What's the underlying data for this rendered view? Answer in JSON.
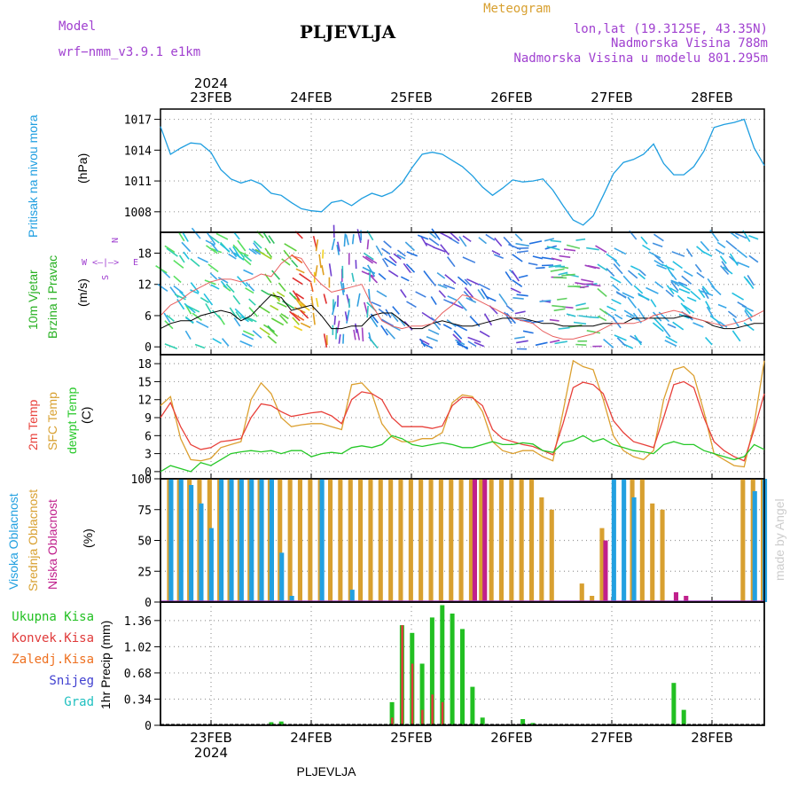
{
  "header": {
    "model_label": "Model",
    "model_name": "wrf−nmm_v3.9.1  e1km",
    "station": "PLJEVLJA",
    "product": "Meteogram",
    "lonlat": "lon,lat (19.3125E, 43.35N)",
    "elevation": "Nadmorska Visina 788m",
    "model_elevation": "Nadmorska Visina u modelu 801.295m",
    "footer_station": "PLJEVLJA",
    "watermark": "made by Angel"
  },
  "colors": {
    "pressure": "#1E9EE0",
    "t2m": "#E8403A",
    "tsfc": "#DCA030",
    "dewpt": "#26C828",
    "cloud_high": "#22A0E0",
    "cloud_mid": "#D8A030",
    "cloud_low": "#C0208C",
    "precip_total": "#22C022",
    "precip_conv": "#E03A3A",
    "precip_strat": "#EE7020",
    "snow": "#4040D0",
    "hail": "#20C0C0",
    "wind_label": "#26B020",
    "compass": "#A040D0",
    "title_color": "#222222"
  },
  "x_axis": {
    "year": "2024",
    "dates": [
      "23FEB",
      "24FEB",
      "25FEB",
      "26FEB",
      "27FEB",
      "28FEB"
    ]
  },
  "chart_data": [
    {
      "type": "line",
      "name": "pressure",
      "ylabel_lines": [
        "Pritisak na nivou mora",
        "(hPa)"
      ],
      "yticks": [
        "1017",
        "1014",
        "1011",
        "1008"
      ],
      "ylim": [
        1006,
        1018
      ],
      "x_range": [
        "22FEB 12UTC",
        "28FEB 12UTC"
      ],
      "series": [
        {
          "values": [
            1016.3,
            1013.6,
            1014.2,
            1014.7,
            1014.6,
            1013.8,
            1012.1,
            1011.2,
            1010.8,
            1011.1,
            1010.7,
            1009.8,
            1009.6,
            1008.9,
            1008.3,
            1008.1,
            1008.0,
            1008.9,
            1009.1,
            1008.6,
            1009.3,
            1009.8,
            1009.5,
            1009.9,
            1010.8,
            1012.3,
            1013.6,
            1013.8,
            1013.6,
            1013.0,
            1012.4,
            1011.5,
            1010.4,
            1009.6,
            1010.3,
            1011.1,
            1010.9,
            1011.0,
            1011.2,
            1010.1,
            1008.6,
            1007.2,
            1006.7,
            1007.6,
            1009.6,
            1011.7,
            1012.8,
            1013.1,
            1013.6,
            1014.6,
            1012.7,
            1011.6,
            1011.6,
            1012.4,
            1013.9,
            1016.2,
            1016.5,
            1016.7,
            1017.0,
            1014.2,
            1012.5
          ]
        }
      ]
    },
    {
      "type": "line",
      "name": "wind",
      "ylabel_lines": [
        "10m Vjetar",
        "Brzina i Pravac",
        "(m/s)"
      ],
      "compass": {
        "n": "N",
        "s": "S",
        "e": "E",
        "w": "W",
        "glyph": "<–|–>"
      },
      "yticks": [
        "18",
        "12",
        "6",
        "0"
      ],
      "ylim": [
        -1.5,
        22
      ],
      "series": [
        {
          "name": "mean",
          "values": [
            3.5,
            4.5,
            5.0,
            5.0,
            6.0,
            6.5,
            7.0,
            6.5,
            5.0,
            6.0,
            8.0,
            10.0,
            9.5,
            7.0,
            7.5,
            8.0,
            6.0,
            3.5,
            3.5,
            4.0,
            4.0,
            6.0,
            6.5,
            6.5,
            5.0,
            3.5,
            3.5,
            4.5,
            5.0,
            4.5,
            4.0,
            4.0,
            4.5,
            5.0,
            5.5,
            5.5,
            5.5,
            5.0,
            4.5,
            4.5,
            4.0,
            4.0,
            4.0,
            4.0,
            4.5,
            4.5,
            4.5,
            5.5,
            5.5,
            5.5,
            5.5,
            5.5,
            6.0,
            5.5,
            5.0,
            4.0,
            3.5,
            3.5,
            4.0,
            4.5,
            4.5
          ]
        },
        {
          "name": "gust",
          "values": [
            6.0,
            8.0,
            9.0,
            10.5,
            11.5,
            12.5,
            13.0,
            13.0,
            12.5,
            13.0,
            14.0,
            13.5,
            16.0,
            17.5,
            17.0,
            14.0,
            12.0,
            10.5,
            11.0,
            11.5,
            12.0,
            8.0,
            5.0,
            4.0,
            3.5,
            4.0,
            4.0,
            4.5,
            6.5,
            8.0,
            10.0,
            9.5,
            8.5,
            7.5,
            6.5,
            5.5,
            5.0,
            4.5,
            3.0,
            2.0,
            1.5,
            1.5,
            2.0,
            2.5,
            3.5,
            4.5,
            4.5,
            4.5,
            5.0,
            6.0,
            6.5,
            7.0,
            6.5,
            5.5,
            5.0,
            4.5,
            4.0,
            4.5,
            5.0,
            6.0,
            7.0
          ]
        }
      ]
    },
    {
      "type": "line",
      "name": "temperature",
      "ylabel_lines": [
        "2m Temp",
        "SFC Temp",
        "dewpt Temp",
        "(C)"
      ],
      "yticks": [
        "18",
        "15",
        "12",
        "9",
        "6",
        "3",
        "0"
      ],
      "ylim": [
        -1.2,
        19.5
      ],
      "series": [
        {
          "name": "2m Temp",
          "values": [
            9.0,
            11.5,
            7.5,
            4.5,
            3.7,
            4.0,
            5.0,
            5.2,
            5.5,
            9.0,
            11.3,
            11.0,
            10.0,
            9.2,
            9.5,
            9.8,
            10.0,
            9.3,
            8.0,
            12.0,
            13.3,
            13.0,
            12.0,
            9.0,
            7.5,
            7.5,
            7.5,
            7.2,
            7.6,
            11.0,
            12.4,
            12.3,
            11.0,
            7.0,
            5.5,
            5.0,
            4.5,
            4.2,
            3.5,
            2.8,
            8.0,
            14.0,
            14.9,
            14.5,
            13.0,
            8.5,
            6.5,
            5.0,
            4.5,
            4.0,
            9.0,
            14.5,
            15.0,
            14.0,
            9.0,
            5.0,
            3.5,
            2.5,
            1.8,
            7.0,
            13.0
          ]
        },
        {
          "name": "SFC Temp",
          "values": [
            11.0,
            12.5,
            5.5,
            2.0,
            1.8,
            2.2,
            4.0,
            4.5,
            5.0,
            12.0,
            14.8,
            13.0,
            9.0,
            7.5,
            7.8,
            8.0,
            8.0,
            7.5,
            7.0,
            14.5,
            14.8,
            13.0,
            8.0,
            5.8,
            5.0,
            5.0,
            5.5,
            5.5,
            6.5,
            11.5,
            12.8,
            12.5,
            10.0,
            5.0,
            3.5,
            3.0,
            3.5,
            3.5,
            2.5,
            1.8,
            10.0,
            18.5,
            17.5,
            17.0,
            12.0,
            6.0,
            3.5,
            2.5,
            2.0,
            3.5,
            12.0,
            17.0,
            17.5,
            16.0,
            10.0,
            3.0,
            2.0,
            1.0,
            0.8,
            8.0,
            18.5
          ]
        },
        {
          "name": "dewpt Temp",
          "values": [
            0.0,
            1.0,
            0.5,
            0.0,
            1.5,
            1.0,
            2.0,
            3.0,
            3.3,
            3.5,
            3.3,
            3.5,
            3.0,
            3.5,
            3.5,
            2.5,
            3.0,
            3.2,
            3.0,
            4.0,
            4.3,
            4.0,
            4.5,
            6.0,
            5.5,
            4.5,
            4.2,
            4.5,
            4.8,
            4.5,
            4.0,
            4.0,
            4.5,
            5.0,
            4.5,
            4.5,
            4.8,
            4.6,
            3.5,
            3.2,
            4.8,
            5.2,
            6.0,
            5.0,
            5.5,
            4.5,
            4.0,
            3.5,
            3.3,
            3.0,
            4.5,
            5.0,
            4.5,
            4.5,
            3.5,
            3.0,
            2.5,
            2.0,
            2.5,
            4.5,
            3.7
          ]
        }
      ]
    },
    {
      "type": "bar",
      "name": "cloud",
      "ylabel_lines": [
        "Visoka Oblacnost",
        "Srednja Oblacnost",
        "Niska Oblacnost",
        "(%)"
      ],
      "yticks": [
        "100",
        "75",
        "50",
        "25",
        "0"
      ],
      "ylim": [
        0,
        100
      ],
      "series": [
        {
          "name": "Visoka Oblacnost",
          "values": [
            0,
            100,
            100,
            95,
            80,
            60,
            100,
            100,
            100,
            100,
            100,
            100,
            40,
            5,
            0,
            0,
            100,
            0,
            0,
            10,
            0,
            0,
            0,
            0,
            0,
            0,
            0,
            0,
            0,
            0,
            0,
            0,
            0,
            0,
            0,
            0,
            0,
            0,
            0,
            0,
            0,
            0,
            0,
            0,
            0,
            100,
            100,
            85,
            0,
            0,
            0,
            0,
            0,
            0,
            0,
            0,
            0,
            0,
            0,
            90,
            100
          ]
        },
        {
          "name": "Srednja Oblacnost",
          "values": [
            0,
            100,
            100,
            100,
            100,
            100,
            100,
            100,
            100,
            100,
            100,
            100,
            100,
            100,
            100,
            100,
            100,
            100,
            100,
            100,
            100,
            100,
            100,
            100,
            100,
            100,
            100,
            100,
            100,
            100,
            100,
            100,
            100,
            100,
            100,
            100,
            100,
            100,
            85,
            75,
            0,
            0,
            15,
            5,
            60,
            0,
            0,
            100,
            100,
            80,
            75,
            0,
            0,
            0,
            0,
            0,
            0,
            0,
            100,
            100,
            100
          ]
        },
        {
          "name": "Niska Oblacnost",
          "values": [
            0,
            0,
            0,
            0,
            0,
            0,
            0,
            0,
            0,
            0,
            0,
            0,
            0,
            0,
            0,
            0,
            0,
            0,
            0,
            0,
            0,
            0,
            0,
            0,
            0,
            0,
            0,
            0,
            0,
            0,
            0,
            100,
            100,
            0,
            0,
            0,
            0,
            0,
            0,
            0,
            0,
            0,
            0,
            0,
            50,
            0,
            0,
            0,
            0,
            0,
            0,
            8,
            5,
            0,
            0,
            0,
            0,
            0,
            0,
            0,
            0
          ]
        }
      ]
    },
    {
      "type": "bar",
      "name": "precipitation",
      "ylabel_lines": [
        "1hr Precip (mm)"
      ],
      "legend": [
        "Ukupna Kisa",
        "Konvek.Kisa",
        "Zaledj.Kisa",
        "Snijeg",
        "Grad"
      ],
      "yticks": [
        "1.36",
        "1.02",
        "0.68",
        "0.34",
        "0"
      ],
      "ylim": [
        0,
        1.6
      ],
      "series": [
        {
          "name": "Ukupna Kisa",
          "values": [
            0,
            0,
            0,
            0,
            0,
            0,
            0,
            0,
            0,
            0,
            0,
            0.04,
            0.05,
            0,
            0,
            0,
            0,
            0,
            0,
            0,
            0,
            0,
            0,
            0.3,
            1.3,
            1.2,
            0.8,
            1.4,
            1.56,
            1.45,
            1.25,
            0.5,
            0.1,
            0,
            0,
            0,
            0.08,
            0.03,
            0,
            0,
            0,
            0,
            0,
            0,
            0,
            0,
            0,
            0,
            0,
            0,
            0,
            0.55,
            0.2,
            0,
            0,
            0,
            0,
            0,
            0,
            0,
            0
          ]
        },
        {
          "name": "Konvek.Kisa",
          "values": [
            0,
            0,
            0,
            0,
            0,
            0,
            0,
            0,
            0,
            0,
            0,
            0,
            0,
            0,
            0,
            0,
            0,
            0,
            0,
            0,
            0,
            0,
            0,
            0.1,
            1.3,
            0.8,
            0.2,
            0.4,
            0.3,
            0,
            0,
            0,
            0,
            0,
            0,
            0,
            0,
            0,
            0,
            0,
            0,
            0,
            0,
            0,
            0,
            0,
            0,
            0,
            0,
            0,
            0,
            0,
            0,
            0,
            0,
            0,
            0,
            0,
            0,
            0,
            0
          ]
        }
      ]
    }
  ]
}
